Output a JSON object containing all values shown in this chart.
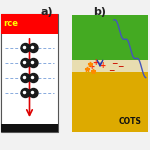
{
  "bg_color": "#f2f2f2",
  "panel_a": {
    "red_color": "#ff0000",
    "red_text": "rce",
    "red_text_color": "#ffff00",
    "black_color": "#111111",
    "border_color": "#555555",
    "arrow_color": "#dd0000",
    "dot_color": "#1a1a1a",
    "dot_blue": "#88aadd",
    "label": "a)"
  },
  "panel_b": {
    "green_bar_color": "#44aa22",
    "gold_bar_color": "#ddaa00",
    "cream_layer_color": "#e8ddb0",
    "label": "b)",
    "cots_text": "COTS",
    "cots_color": "#111111",
    "blue_line_color": "#4455bb",
    "plus_color": "#ff2200",
    "minus_color": "#cc1100",
    "spark_color": "#ff8800",
    "blue_arrow_color": "#2233aa"
  }
}
